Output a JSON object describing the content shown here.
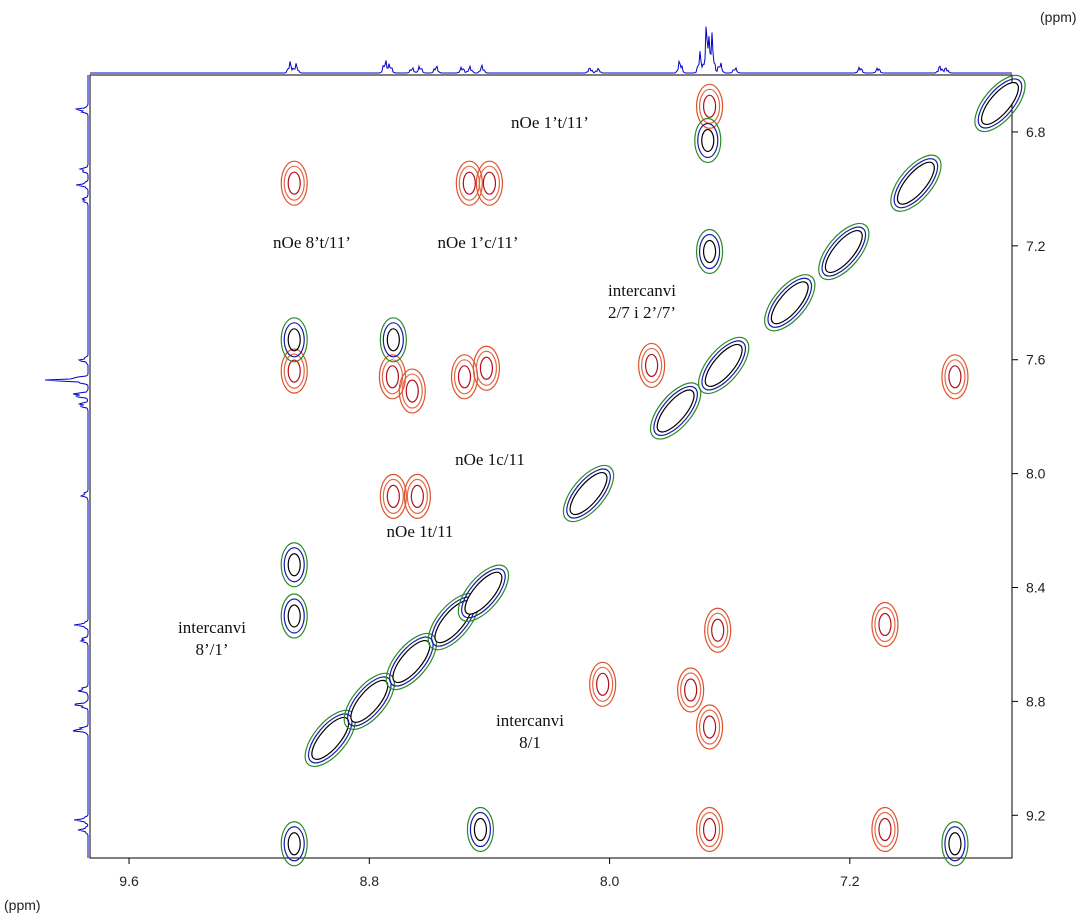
{
  "chart_data": {
    "type": "contour",
    "x_label": "(ppm)",
    "y_label": "(ppm)",
    "xlim": [
      9.73,
      6.66
    ],
    "ylim": [
      6.6,
      9.35
    ],
    "xticks": [
      9.6,
      8.8,
      {
        "value": 8,
        "label": "8.0"
      },
      7.2
    ],
    "yticks": [
      6.8,
      7.2,
      7.6,
      {
        "value": 8,
        "label": "8.0"
      },
      8.4,
      8.8,
      9.2
    ],
    "annotations": [
      [
        "nOe 1’t/11’"
      ],
      [
        "nOe 8’t/11’"
      ],
      [
        "nOe 1’c/11’"
      ],
      [
        "intercanvi",
        "2/7 i 2’/7’"
      ],
      [
        "nOe 1c/11"
      ],
      [
        "nOe 1t/11"
      ],
      [
        "intercanvi",
        "8’/1’"
      ],
      [
        "intercanvi",
        "8/1"
      ]
    ],
    "series": [
      {
        "color": "#e0522a",
        "x": [
          9.05,
          8.467,
          8.4,
          9.05,
          8.723,
          8.657,
          8.483,
          8.41,
          8.72,
          8.64,
          7.667,
          8.023,
          7.667,
          7.083,
          7.083,
          7.667,
          6.85,
          7.86,
          7.73,
          7.64
        ],
        "y": [
          6.98,
          6.98,
          6.98,
          7.64,
          7.66,
          7.71,
          7.66,
          7.63,
          8.08,
          8.08,
          6.71,
          8.74,
          8.89,
          8.53,
          9.25,
          9.25,
          7.66,
          7.62,
          8.76,
          8.55
        ]
      },
      {
        "color": "#2b8a2b",
        "x": [
          9.05,
          9.05,
          8.43,
          9.05,
          6.85,
          8.72,
          9.05,
          7.667,
          7.673
        ],
        "y": [
          8.5,
          9.3,
          9.25,
          8.32,
          9.3,
          7.53,
          7.53,
          7.22,
          6.83
        ]
      },
      {
        "color": "#1a1aa8",
        "x": [
          8.93,
          8.8,
          8.66,
          8.52,
          8.42,
          8.07,
          7.78,
          7.62,
          7.4,
          7.22,
          6.98,
          6.7
        ],
        "y": [
          8.93,
          8.8,
          8.66,
          8.52,
          8.42,
          8.07,
          7.78,
          7.62,
          7.4,
          7.22,
          6.98,
          6.7
        ]
      }
    ]
  }
}
